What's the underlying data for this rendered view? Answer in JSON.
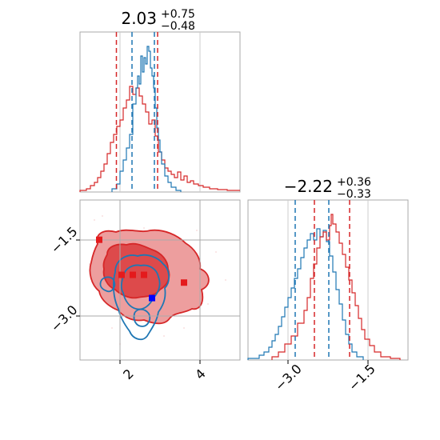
{
  "chart_data": [
    {
      "type": "histogram",
      "panel": "marginal-x",
      "title": {
        "value": "2.03",
        "plus": "+0.75",
        "minus": "−0.48"
      },
      "xlim": [
        0.0,
        5.0
      ],
      "grid": true,
      "series": [
        {
          "color": "#d62728",
          "quantiles": [
            1.55,
            2.03,
            2.78
          ]
        },
        {
          "color": "#1f77b4",
          "quantiles": [
            2.0,
            2.65
          ]
        }
      ]
    },
    {
      "type": "histogram",
      "panel": "marginal-y",
      "title": {
        "value": "−2.22",
        "plus": "+0.36",
        "minus": "−0.33"
      },
      "xlim": [
        -4.0,
        -1.0
      ],
      "ticks": [
        {
          "value": -3.0,
          "label": "−3.0"
        },
        {
          "value": -1.5,
          "label": "−1.5"
        }
      ],
      "grid": true,
      "series": [
        {
          "color": "#d62728",
          "quantiles": [
            -2.55,
            -2.22,
            -1.86
          ]
        },
        {
          "color": "#1f77b4",
          "quantiles": [
            -3.0,
            -2.35
          ]
        }
      ]
    },
    {
      "type": "contour",
      "panel": "joint",
      "xlim": [
        0.0,
        5.0
      ],
      "ylim": [
        -3.8,
        -0.7
      ],
      "xticks": [
        {
          "value": 2,
          "label": "2"
        },
        {
          "value": 4,
          "label": "4"
        }
      ],
      "yticks": [
        {
          "value": -1.5,
          "label": "−1.5"
        },
        {
          "value": -3.0,
          "label": "−3.0"
        }
      ],
      "grid": true,
      "markers": [
        {
          "x": 0.6,
          "y": -1.47,
          "color": "#e41a1c"
        },
        {
          "x": 1.3,
          "y": -2.15,
          "color": "#e41a1c"
        },
        {
          "x": 1.65,
          "y": -2.15,
          "color": "#e41a1c"
        },
        {
          "x": 3.25,
          "y": -2.3,
          "color": "#e41a1c"
        },
        {
          "x": 2.0,
          "y": -2.15,
          "color": "#e41a1c"
        },
        {
          "x": 2.25,
          "y": -2.6,
          "color": "#0000ff"
        }
      ]
    }
  ]
}
